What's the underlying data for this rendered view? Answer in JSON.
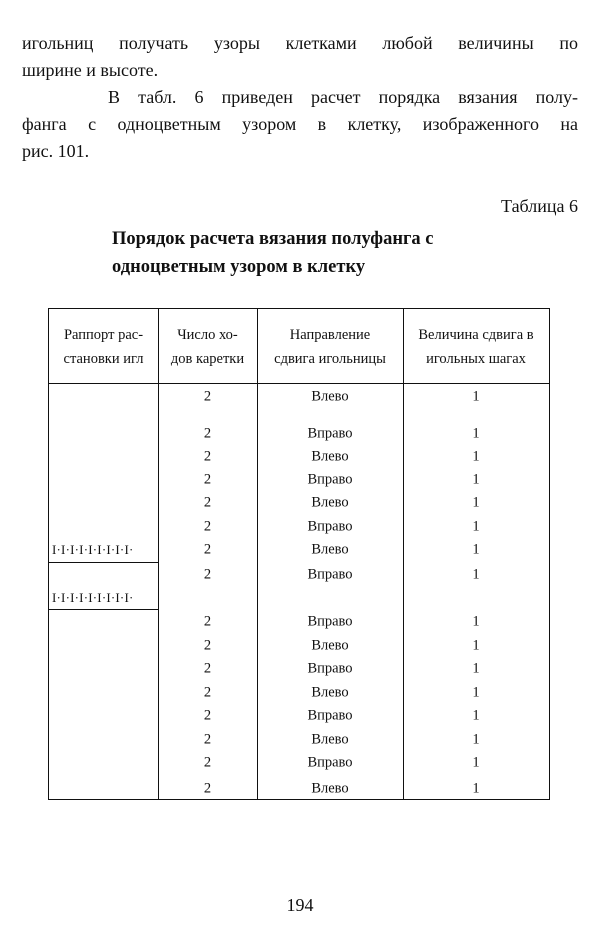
{
  "paragraphs": [
    "игольниц получать узоры клетками любой величины по",
    "ширине и высоте.",
    "В табл. 6 приведен расчет порядка вязания полу-",
    "фанга с одноцветным узором в клетку, изображенного на",
    "рис. 101."
  ],
  "table_label": "Таблица 6",
  "table_title": [
    "Порядок расчета вязания полуфанга с",
    "одноцветным узором в клетку"
  ],
  "table": {
    "headers": [
      [
        "Раппорт рас-",
        "становки игл"
      ],
      [
        "Число хо-",
        "дов каретки"
      ],
      [
        "Направление",
        "сдвига игольницы"
      ],
      [
        "Величина сдвига в",
        "игольных шагах"
      ]
    ],
    "patterns": [
      "I·I·I·I·I·I·I·I·I·",
      "I·I·I·I·I·I·I·I·I·"
    ],
    "rows": [
      [
        "2",
        "Влево",
        "1"
      ],
      [
        "2",
        "Вправо",
        "1"
      ],
      [
        "2",
        "Влево",
        "1"
      ],
      [
        "2",
        "Вправо",
        "1"
      ],
      [
        "2",
        "Влево",
        "1"
      ],
      [
        "2",
        "Вправо",
        "1"
      ],
      [
        "2",
        "Влево",
        "1"
      ],
      [
        "2",
        "Вправо",
        "1"
      ],
      [
        "2",
        "Вправо",
        "1"
      ],
      [
        "2",
        "Влево",
        "1"
      ],
      [
        "2",
        "Вправо",
        "1"
      ],
      [
        "2",
        "Влево",
        "1"
      ],
      [
        "2",
        "Вправо",
        "1"
      ],
      [
        "2",
        "Влево",
        "1"
      ],
      [
        "2",
        "Вправо",
        "1"
      ],
      [
        "2",
        "Влево",
        "1"
      ]
    ]
  },
  "page_number": "194"
}
